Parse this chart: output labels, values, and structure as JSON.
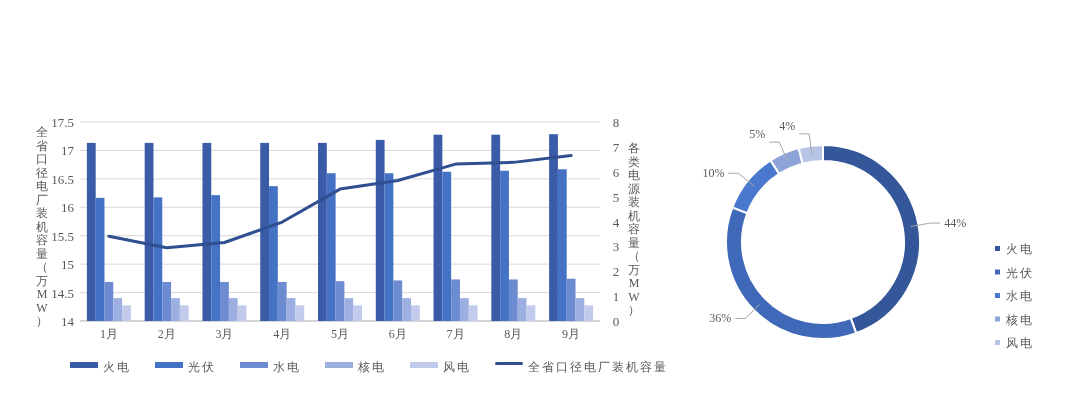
{
  "chart_data": [
    {
      "type": "bar",
      "categories": [
        "1月",
        "2月",
        "3月",
        "4月",
        "5月",
        "6月",
        "7月",
        "8月",
        "9月"
      ],
      "series": [
        {
          "name": "火电",
          "type": "bar",
          "axis": "y2",
          "color": "#3a5ba8",
          "values": [
            7.16,
            7.16,
            7.16,
            7.16,
            7.16,
            7.28,
            7.49,
            7.49,
            7.51
          ]
        },
        {
          "name": "光伏",
          "type": "bar",
          "axis": "y2",
          "color": "#4472c4",
          "values": [
            4.95,
            4.97,
            5.06,
            5.42,
            5.94,
            5.94,
            6.0,
            6.04,
            6.1
          ]
        },
        {
          "name": "水电",
          "type": "bar",
          "axis": "y2",
          "color": "#6d8bd0",
          "values": [
            1.57,
            1.57,
            1.57,
            1.57,
            1.6,
            1.63,
            1.67,
            1.67,
            1.7
          ]
        },
        {
          "name": "核电",
          "type": "bar",
          "axis": "y2",
          "color": "#9dafe0",
          "values": [
            0.92,
            0.92,
            0.92,
            0.92,
            0.92,
            0.92,
            0.92,
            0.92,
            0.92
          ]
        },
        {
          "name": "风电",
          "type": "bar",
          "axis": "y2",
          "color": "#c2cbeb",
          "values": [
            0.63,
            0.63,
            0.63,
            0.63,
            0.63,
            0.63,
            0.63,
            0.63,
            0.63
          ]
        },
        {
          "name": "全省口径电厂装机容量",
          "type": "line",
          "axis": "y",
          "color": "#2f4f90",
          "values": [
            15.49,
            15.29,
            15.38,
            15.74,
            16.32,
            16.47,
            16.76,
            16.79,
            16.91
          ]
        }
      ],
      "ylabel": "全省口径电厂装机容量（万MW）",
      "y2label": "各类电源装机容量（万MW）",
      "ylim": [
        14,
        17.5
      ],
      "yticks": [
        14,
        14.5,
        15,
        15.5,
        16,
        16.5,
        17,
        17.5
      ],
      "y2lim": [
        0,
        8
      ],
      "y2ticks": [
        0,
        1,
        2,
        3,
        4,
        5,
        6,
        7,
        8
      ],
      "grid": "y",
      "legend": "bottom"
    },
    {
      "type": "donut",
      "categories": [
        "火电",
        "光伏",
        "水电",
        "核电",
        "风电"
      ],
      "values": [
        44,
        36,
        10,
        5,
        4
      ],
      "colors": [
        "#34579a",
        "#3f68b8",
        "#4a78cc",
        "#8ea3d8",
        "#b8c4e6"
      ],
      "value_labels": [
        "44%",
        "36%",
        "10%",
        "5%",
        "4%"
      ],
      "legend": "right"
    }
  ]
}
